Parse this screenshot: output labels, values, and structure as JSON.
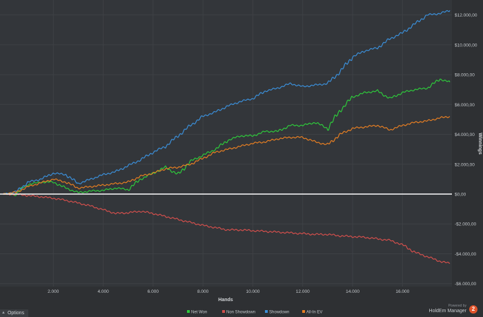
{
  "chart_data": {
    "type": "line",
    "xlabel": "Hands",
    "ylabel": "Winnings",
    "xlim": [
      0,
      17900
    ],
    "ylim": [
      -6200,
      13000
    ],
    "x_ticks": [
      2000,
      4000,
      6000,
      8000,
      10000,
      12000,
      14000,
      16000
    ],
    "x_tick_labels": [
      "2.000",
      "4.000",
      "6.000",
      "8.000",
      "10.000",
      "12.000",
      "14.000",
      "16.000"
    ],
    "y_ticks": [
      12000,
      10000,
      8000,
      6000,
      4000,
      2000,
      0,
      -2000,
      -4000,
      -6000
    ],
    "y_tick_labels": [
      "$12.000,00",
      "$10.000,00",
      "$8.000,00",
      "$6.000,00",
      "$4.000,00",
      "$2.000,00",
      "$0,00",
      "-$2.000,00",
      "-$4.000,00",
      "-$6.000,00"
    ],
    "grid": true,
    "legend_position": "bottom",
    "series": [
      {
        "name": "Net Won",
        "color": "#2ec93b",
        "x": [
          0,
          300,
          500,
          700,
          1000,
          1500,
          2000,
          2500,
          3000,
          3500,
          4000,
          4500,
          5000,
          5500,
          6000,
          6500,
          7000,
          7500,
          8000,
          8500,
          9000,
          9500,
          10000,
          10500,
          11000,
          11500,
          12000,
          12500,
          13000,
          13500,
          14000,
          14500,
          15000,
          15500,
          16000,
          16500,
          17000,
          17500,
          17900
        ],
        "values": [
          0,
          0,
          -50,
          350,
          650,
          800,
          800,
          400,
          100,
          200,
          250,
          400,
          300,
          1000,
          1400,
          1800,
          1300,
          2200,
          2600,
          3000,
          3600,
          3900,
          3900,
          4200,
          4200,
          4600,
          4600,
          4800,
          4400,
          5600,
          6500,
          6800,
          6900,
          6400,
          6800,
          7000,
          7100,
          7700,
          7500
        ]
      },
      {
        "name": "Non Showdown",
        "color": "#d24f4c",
        "x": [
          0,
          500,
          1000,
          1500,
          2000,
          2500,
          3000,
          3500,
          4000,
          4500,
          5000,
          5500,
          6000,
          6500,
          7000,
          7500,
          8000,
          8500,
          9000,
          9500,
          10000,
          10500,
          11000,
          11500,
          12000,
          12500,
          13000,
          13500,
          14000,
          14500,
          15000,
          15500,
          16000,
          16500,
          17000,
          17500,
          17900
        ],
        "values": [
          0,
          -10,
          -100,
          -180,
          -280,
          -420,
          -600,
          -800,
          -1050,
          -1300,
          -1250,
          -1150,
          -1300,
          -1500,
          -1700,
          -1900,
          -2100,
          -2250,
          -2400,
          -2400,
          -2450,
          -2500,
          -2550,
          -2600,
          -2650,
          -2700,
          -2700,
          -2800,
          -2850,
          -2900,
          -3000,
          -3100,
          -3400,
          -3900,
          -4200,
          -4500,
          -4650
        ]
      },
      {
        "name": "Showdown",
        "color": "#3b8fd9",
        "x": [
          0,
          500,
          1000,
          1500,
          2000,
          2500,
          3000,
          3500,
          4000,
          4500,
          5000,
          5500,
          6000,
          6500,
          7000,
          7500,
          8000,
          8500,
          9000,
          9500,
          10000,
          10500,
          11000,
          11500,
          12000,
          12500,
          13000,
          13500,
          14000,
          14500,
          15000,
          15500,
          16000,
          16500,
          17000,
          17500,
          17900
        ],
        "values": [
          0,
          150,
          800,
          1000,
          1400,
          1300,
          700,
          1000,
          1300,
          1500,
          1900,
          2300,
          2800,
          3200,
          3900,
          4600,
          5200,
          5500,
          5900,
          6200,
          6400,
          6900,
          7100,
          7400,
          7200,
          7300,
          7400,
          8200,
          9200,
          9600,
          9800,
          10400,
          10800,
          11400,
          12000,
          12100,
          12300
        ]
      },
      {
        "name": "All-In EV",
        "color": "#e67e22",
        "x": [
          0,
          500,
          1000,
          1500,
          2000,
          2500,
          3000,
          3500,
          4000,
          4500,
          5000,
          5500,
          6000,
          6500,
          7000,
          7500,
          8000,
          8500,
          9000,
          9500,
          10000,
          10500,
          11000,
          11500,
          12000,
          12500,
          13000,
          13500,
          14000,
          14500,
          15000,
          15500,
          16000,
          16500,
          17000,
          17500,
          17900
        ],
        "values": [
          0,
          120,
          500,
          750,
          1000,
          800,
          400,
          500,
          600,
          700,
          800,
          1200,
          1400,
          1700,
          1800,
          2000,
          2400,
          2800,
          3000,
          3200,
          3400,
          3500,
          3700,
          3800,
          3800,
          3500,
          3300,
          4000,
          4400,
          4500,
          4600,
          4300,
          4600,
          4800,
          4900,
          5100,
          5200
        ]
      }
    ]
  },
  "options_label": "Options",
  "brand": {
    "powered": "Powered by",
    "name": "HoldEm Manager",
    "badge": "2"
  }
}
